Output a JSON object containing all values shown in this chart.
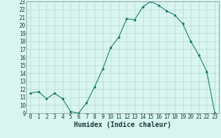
{
  "x": [
    0,
    1,
    2,
    3,
    4,
    5,
    6,
    7,
    8,
    9,
    10,
    11,
    12,
    13,
    14,
    15,
    16,
    17,
    18,
    19,
    20,
    21,
    22,
    23
  ],
  "y": [
    11.5,
    11.7,
    10.8,
    11.5,
    10.8,
    9.2,
    9.0,
    10.3,
    12.3,
    14.5,
    17.2,
    18.5,
    20.8,
    20.7,
    22.3,
    23.0,
    22.5,
    21.8,
    21.3,
    20.2,
    18.0,
    16.3,
    14.2,
    9.0
  ],
  "line_color": "#1a7a6e",
  "marker": "o",
  "marker_size": 2,
  "bg_color": "#d8f5f0",
  "grid_color": "#b8d8d0",
  "xlabel": "Humidex (Indice chaleur)",
  "xlim": [
    -0.5,
    23.5
  ],
  "ylim": [
    9,
    23
  ],
  "xticks": [
    0,
    1,
    2,
    3,
    4,
    5,
    6,
    7,
    8,
    9,
    10,
    11,
    12,
    13,
    14,
    15,
    16,
    17,
    18,
    19,
    20,
    21,
    22,
    23
  ],
  "yticks": [
    9,
    10,
    11,
    12,
    13,
    14,
    15,
    16,
    17,
    18,
    19,
    20,
    21,
    22,
    23
  ],
  "title_color": "#1a3a3a",
  "tick_fontsize": 5.5,
  "xlabel_fontsize": 7
}
